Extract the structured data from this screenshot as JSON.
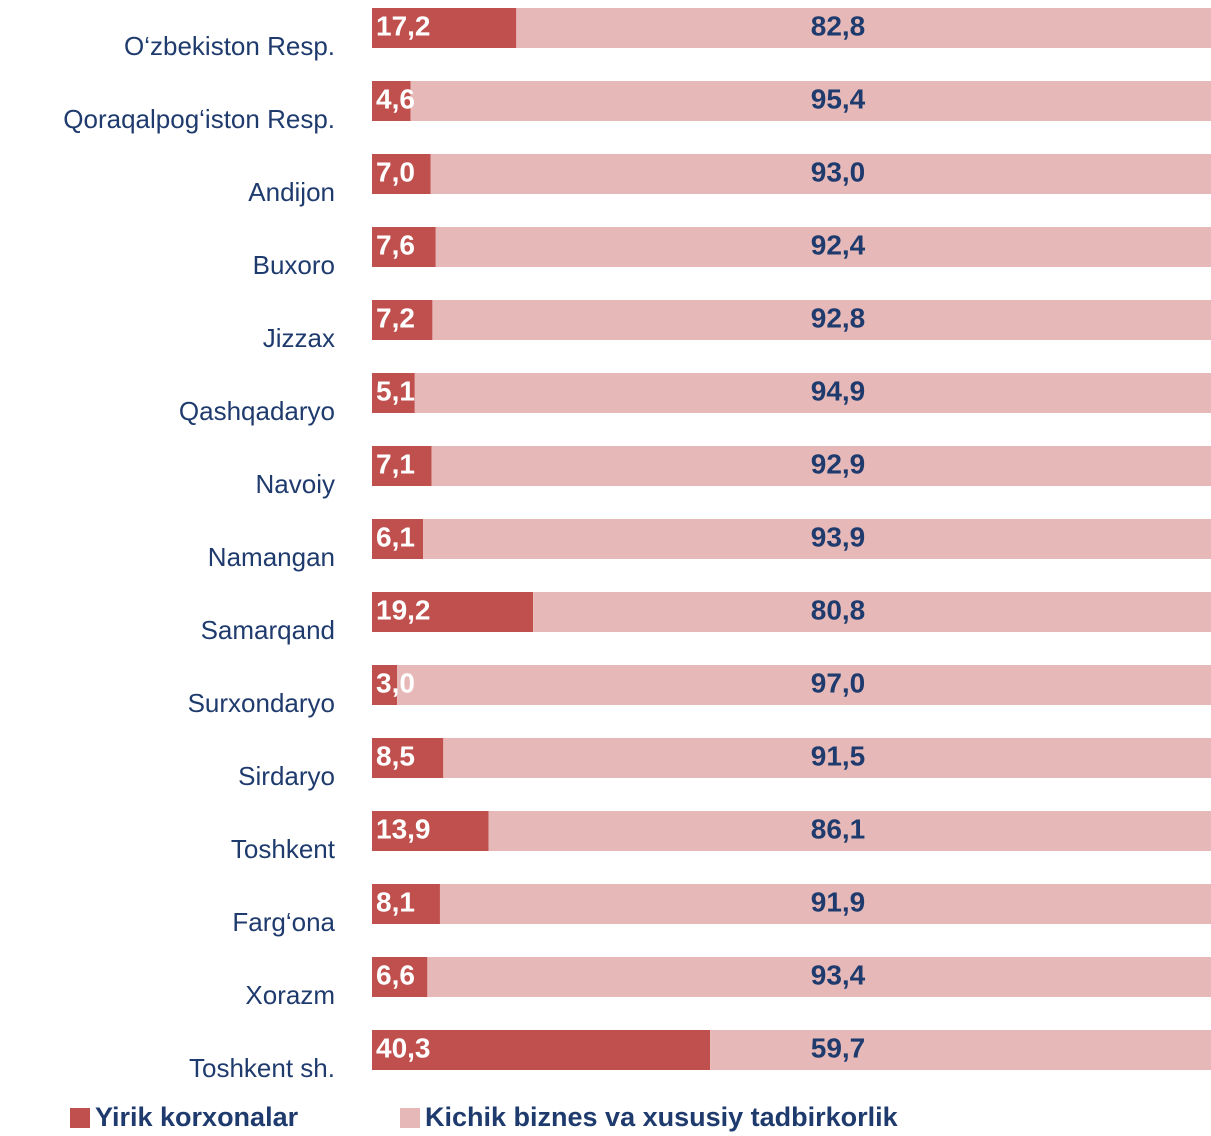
{
  "chart_data": {
    "type": "stacked-bar-horizontal",
    "categories": [
      "O‘zbekiston Resp.",
      "Qoraqalpog‘iston Resp.",
      "Andijon",
      "Buxoro",
      "Jizzax",
      "Qashqadaryo",
      "Navoiy",
      "Namangan",
      "Samarqand",
      "Surxondaryo",
      "Sirdaryo",
      "Toshkent",
      "Farg‘ona",
      "Xorazm",
      "Toshkent sh."
    ],
    "series": [
      {
        "name": "Yirik korxonalar",
        "color": "#c0504d",
        "values": [
          17.2,
          4.6,
          7.0,
          7.6,
          7.2,
          5.1,
          7.1,
          6.1,
          19.2,
          3.0,
          8.5,
          13.9,
          8.1,
          6.6,
          40.3
        ],
        "value_labels": [
          "17,2",
          "4,6",
          "7,0",
          "7,6",
          "7,2",
          "5,1",
          "7,1",
          "6,1",
          "19,2",
          "3,0",
          "8,5",
          "13,9",
          "8,1",
          "6,6",
          "40,3"
        ]
      },
      {
        "name": "Kichik biznes va xususiy tadbirkorlik",
        "color": "#e6b9b8",
        "values": [
          82.8,
          95.4,
          93.0,
          92.4,
          92.8,
          94.9,
          92.9,
          93.9,
          80.8,
          97.0,
          91.5,
          86.1,
          91.9,
          93.4,
          59.7
        ],
        "value_labels": [
          "82,8",
          "95,4",
          "93,0",
          "92,4",
          "92,8",
          "94,9",
          "92,9",
          "93,9",
          "80,8",
          "97,0",
          "91,5",
          "86,1",
          "91,9",
          "93,4",
          "59,7"
        ]
      }
    ],
    "xlim": [
      0,
      100
    ],
    "legend": "bottom"
  }
}
